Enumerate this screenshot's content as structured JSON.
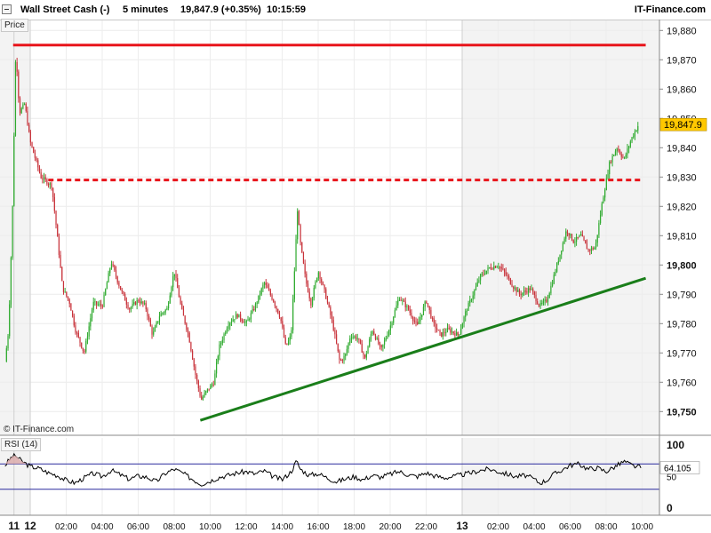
{
  "header": {
    "instrument": "Wall Street Cash (-)",
    "timeframe": "5 minutes",
    "price_change": "19,847.9 (+0.35%)",
    "time": "10:15:59",
    "brand": "IT-Finance.com"
  },
  "price_pane": {
    "label": "Price",
    "copyright": "© IT-Finance.com"
  },
  "rsi_pane": {
    "label": "RSI (14)"
  },
  "colors": {
    "resistance": "#e8141b",
    "trend": "#1a7e1a",
    "bull": "#2faa2f",
    "bear": "#c8323a",
    "badge": "#ffc800",
    "rsi_band": "#2b2b9e"
  },
  "chart_data": [
    {
      "type": "candlestick",
      "title": "Wall Street Cash (-) 5 minutes",
      "ylim": [
        19746,
        19886
      ],
      "y_ticks": [
        "19,880",
        "19,870",
        "19,860",
        "19,850",
        "19,840",
        "19,830",
        "19,820",
        "19,810",
        "19,800",
        "19,790",
        "19,780",
        "19,770",
        "19,760",
        "19,750"
      ],
      "y_tick_values": [
        19880,
        19870,
        19860,
        19850,
        19840,
        19830,
        19820,
        19810,
        19800,
        19790,
        19780,
        19770,
        19760,
        19750
      ],
      "x_tick_labels": [
        "11",
        "12",
        "02:00",
        "04:00",
        "06:00",
        "08:00",
        "10:00",
        "12:00",
        "14:00",
        "16:00",
        "18:00",
        "20:00",
        "22:00",
        "13",
        "02:00",
        "04:00",
        "06:00",
        "08:00",
        "10:00"
      ],
      "x_tick_hours": [
        -0.9,
        0,
        2,
        4,
        6,
        8,
        10,
        12,
        14,
        16,
        18,
        20,
        22,
        24,
        26,
        28,
        30,
        32,
        34
      ],
      "x_major": [
        true,
        true,
        false,
        false,
        false,
        false,
        false,
        false,
        false,
        false,
        false,
        false,
        false,
        true,
        false,
        false,
        false,
        false,
        false
      ],
      "session_breaks_hours": [
        -0.9,
        0,
        24
      ],
      "last_price": 19847.9,
      "last_price_label": "19,847.9",
      "price_path": [
        [
          -1.4,
          19767
        ],
        [
          -1.2,
          19778
        ],
        [
          -1.0,
          19815
        ],
        [
          -0.8,
          19874
        ],
        [
          -0.6,
          19852
        ],
        [
          -0.3,
          19855
        ],
        [
          0.0,
          19842
        ],
        [
          0.3,
          19836
        ],
        [
          0.6,
          19830
        ],
        [
          1.2,
          19827
        ],
        [
          1.5,
          19810
        ],
        [
          1.8,
          19792
        ],
        [
          2.2,
          19787
        ],
        [
          2.5,
          19778
        ],
        [
          3.0,
          19770
        ],
        [
          3.5,
          19787
        ],
        [
          4.0,
          19786
        ],
        [
          4.5,
          19801
        ],
        [
          5.0,
          19792
        ],
        [
          5.5,
          19785
        ],
        [
          6.0,
          19788
        ],
        [
          6.4,
          19786
        ],
        [
          6.8,
          19776
        ],
        [
          7.2,
          19783
        ],
        [
          7.6,
          19785
        ],
        [
          8.0,
          19798
        ],
        [
          8.4,
          19785
        ],
        [
          8.8,
          19776
        ],
        [
          9.2,
          19762
        ],
        [
          9.5,
          19754
        ],
        [
          9.8,
          19757
        ],
        [
          10.2,
          19760
        ],
        [
          10.5,
          19772
        ],
        [
          11.0,
          19780
        ],
        [
          11.5,
          19783
        ],
        [
          12.0,
          19780
        ],
        [
          12.5,
          19786
        ],
        [
          13.0,
          19794
        ],
        [
          13.5,
          19788
        ],
        [
          13.9,
          19782
        ],
        [
          14.2,
          19772
        ],
        [
          14.5,
          19776
        ],
        [
          14.7,
          19800
        ],
        [
          14.85,
          19819
        ],
        [
          15.0,
          19808
        ],
        [
          15.3,
          19795
        ],
        [
          15.6,
          19787
        ],
        [
          16.0,
          19798
        ],
        [
          16.4,
          19790
        ],
        [
          16.8,
          19780
        ],
        [
          17.2,
          19767
        ],
        [
          17.5,
          19769
        ],
        [
          17.8,
          19776
        ],
        [
          18.2,
          19775
        ],
        [
          18.6,
          19768
        ],
        [
          19.0,
          19778
        ],
        [
          19.5,
          19771
        ],
        [
          20.0,
          19779
        ],
        [
          20.5,
          19789
        ],
        [
          21.0,
          19785
        ],
        [
          21.5,
          19779
        ],
        [
          22.0,
          19788
        ],
        [
          22.4,
          19780
        ],
        [
          22.8,
          19776
        ],
        [
          23.2,
          19778
        ],
        [
          23.8,
          19776
        ],
        [
          24.2,
          19784
        ],
        [
          24.6,
          19790
        ],
        [
          25.0,
          19796
        ],
        [
          25.5,
          19799
        ],
        [
          26.0,
          19800
        ],
        [
          26.4,
          19797
        ],
        [
          26.8,
          19793
        ],
        [
          27.2,
          19790
        ],
        [
          27.8,
          19792
        ],
        [
          28.3,
          19786
        ],
        [
          28.7,
          19788
        ],
        [
          29.0,
          19794
        ],
        [
          29.4,
          19803
        ],
        [
          29.8,
          19812
        ],
        [
          30.2,
          19808
        ],
        [
          30.6,
          19810
        ],
        [
          31.0,
          19805
        ],
        [
          31.4,
          19806
        ],
        [
          31.8,
          19822
        ],
        [
          32.2,
          19835
        ],
        [
          32.6,
          19840
        ],
        [
          33.0,
          19836
        ],
        [
          33.4,
          19843
        ],
        [
          33.8,
          19847.9
        ]
      ],
      "horizontal_lines": [
        {
          "kind": "solid",
          "y": 19875,
          "x_from_hours": -0.95,
          "x_to_hours": 34.2
        },
        {
          "kind": "dashed",
          "y": 19829,
          "x_from_hours": 1.0,
          "x_to_hours": 34.0
        }
      ],
      "trendline": {
        "x1_hours": 9.45,
        "y1": 19747,
        "x2_hours": 34.2,
        "y2": 19795.5
      }
    },
    {
      "type": "line",
      "title": "RSI (14)",
      "ylim": [
        0,
        100
      ],
      "y_ticks": [
        "100",
        "50",
        "0"
      ],
      "y_tick_values": [
        100,
        50,
        0
      ],
      "bands": [
        70,
        30
      ],
      "last_value": 64.105,
      "last_value_label": "64.105",
      "rsi_path": [
        [
          -1.4,
          68
        ],
        [
          -1.0,
          82
        ],
        [
          -0.8,
          83
        ],
        [
          -0.5,
          75
        ],
        [
          0.0,
          66
        ],
        [
          0.5,
          63
        ],
        [
          1.0,
          56
        ],
        [
          1.5,
          52
        ],
        [
          2.0,
          44
        ],
        [
          2.5,
          40
        ],
        [
          3.0,
          48
        ],
        [
          3.5,
          55
        ],
        [
          4.0,
          50
        ],
        [
          4.5,
          60
        ],
        [
          5.0,
          53
        ],
        [
          5.5,
          46
        ],
        [
          6.0,
          51
        ],
        [
          6.5,
          49
        ],
        [
          7.0,
          42
        ],
        [
          7.5,
          55
        ],
        [
          8.0,
          62
        ],
        [
          8.5,
          55
        ],
        [
          9.0,
          46
        ],
        [
          9.5,
          38
        ],
        [
          10.0,
          43
        ],
        [
          10.5,
          49
        ],
        [
          11.0,
          52
        ],
        [
          11.5,
          56
        ],
        [
          12.0,
          58
        ],
        [
          12.5,
          54
        ],
        [
          13.0,
          59
        ],
        [
          13.5,
          50
        ],
        [
          14.0,
          45
        ],
        [
          14.5,
          58
        ],
        [
          14.8,
          75
        ],
        [
          15.0,
          62
        ],
        [
          15.5,
          52
        ],
        [
          16.0,
          55
        ],
        [
          16.5,
          48
        ],
        [
          17.0,
          42
        ],
        [
          17.5,
          46
        ],
        [
          18.0,
          50
        ],
        [
          18.5,
          45
        ],
        [
          19.0,
          52
        ],
        [
          19.5,
          49
        ],
        [
          20.0,
          54
        ],
        [
          20.5,
          58
        ],
        [
          21.0,
          53
        ],
        [
          21.5,
          50
        ],
        [
          22.0,
          56
        ],
        [
          22.5,
          51
        ],
        [
          23.0,
          48
        ],
        [
          23.5,
          50
        ],
        [
          24.0,
          53
        ],
        [
          24.5,
          56
        ],
        [
          25.0,
          60
        ],
        [
          25.5,
          62
        ],
        [
          26.0,
          58
        ],
        [
          26.5,
          54
        ],
        [
          27.0,
          50
        ],
        [
          27.5,
          52
        ],
        [
          28.0,
          46
        ],
        [
          28.3,
          40
        ],
        [
          28.7,
          44
        ],
        [
          29.0,
          52
        ],
        [
          29.5,
          60
        ],
        [
          30.0,
          68
        ],
        [
          30.5,
          70
        ],
        [
          31.0,
          62
        ],
        [
          31.5,
          64
        ],
        [
          32.0,
          58
        ],
        [
          32.5,
          66
        ],
        [
          33.0,
          74
        ],
        [
          33.5,
          67
        ],
        [
          34.0,
          64.105
        ]
      ]
    }
  ]
}
